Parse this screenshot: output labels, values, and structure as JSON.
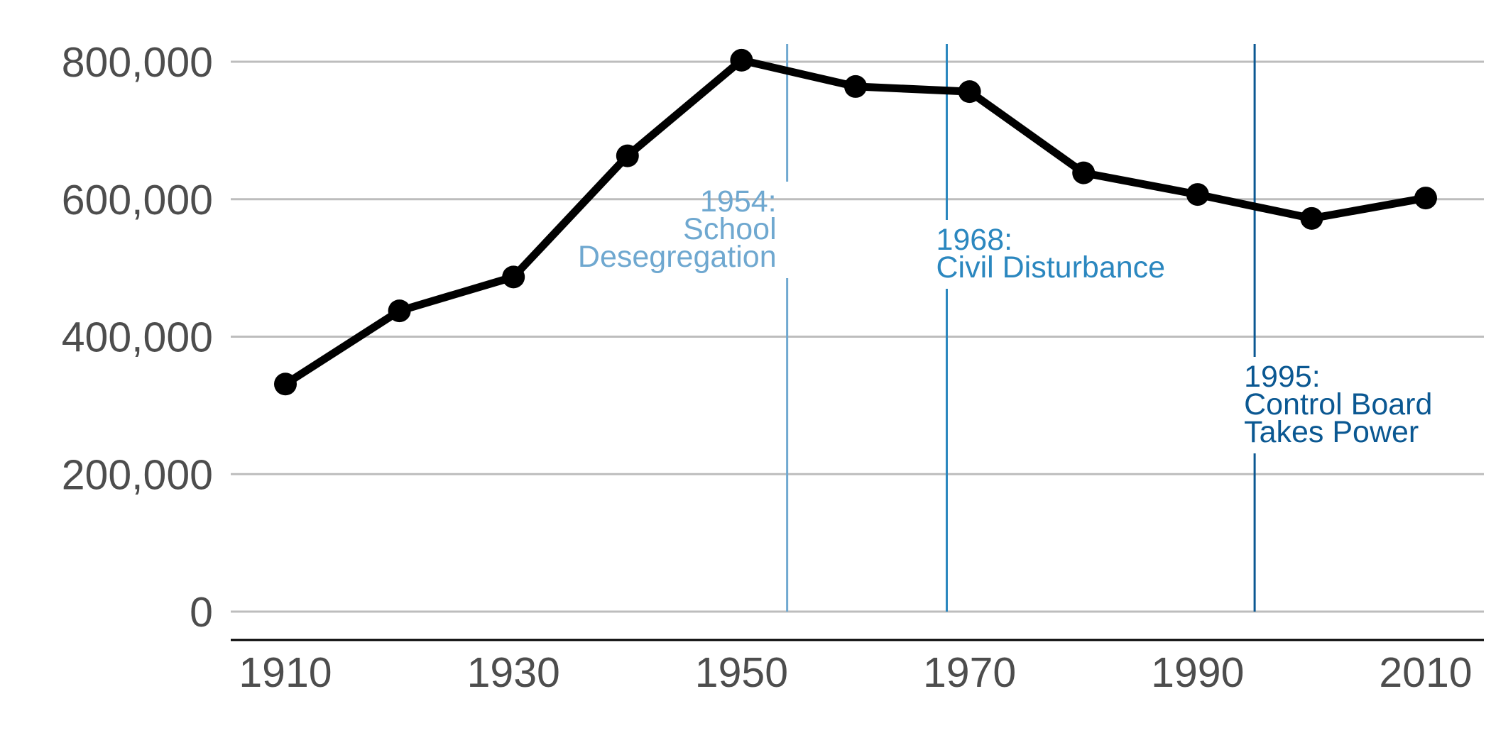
{
  "chart_data": {
    "type": "line",
    "title": "",
    "xlabel": "",
    "ylabel": "",
    "x": [
      1910,
      1920,
      1930,
      1940,
      1950,
      1960,
      1970,
      1980,
      1990,
      2000,
      2010
    ],
    "series": [
      {
        "values": [
          331069,
          437571,
          486869,
          663091,
          802178,
          763956,
          756510,
          638333,
          606900,
          572059,
          601723
        ]
      }
    ],
    "xlim": [
      1905,
      2015
    ],
    "ylim": [
      -40000,
      820000
    ],
    "x_ticks": [
      1910,
      1930,
      1950,
      1970,
      1990,
      2010
    ],
    "x_tick_labels": [
      "1910",
      "1930",
      "1950",
      "1970",
      "1990",
      "2010"
    ],
    "y_ticks": [
      0,
      200000,
      400000,
      600000,
      800000
    ],
    "y_tick_labels": [
      "0",
      "200,000",
      "400,000",
      "600,000",
      "800,000"
    ],
    "grid": "horizontal",
    "line_color": "#000000",
    "gridline_color": "#bdbdbd",
    "events": [
      {
        "year": 1954,
        "lines": [
          "1954:",
          "School",
          "Desegregation"
        ],
        "color": "#6fa8d0",
        "align": "right"
      },
      {
        "year": 1968,
        "lines": [
          "1968:",
          "Civil Disturbance"
        ],
        "color": "#2b87bf",
        "align": "left"
      },
      {
        "year": 1995,
        "lines": [
          "1995:",
          "Control Board",
          "Takes Power"
        ],
        "color": "#0b5892",
        "align": "left"
      }
    ]
  }
}
